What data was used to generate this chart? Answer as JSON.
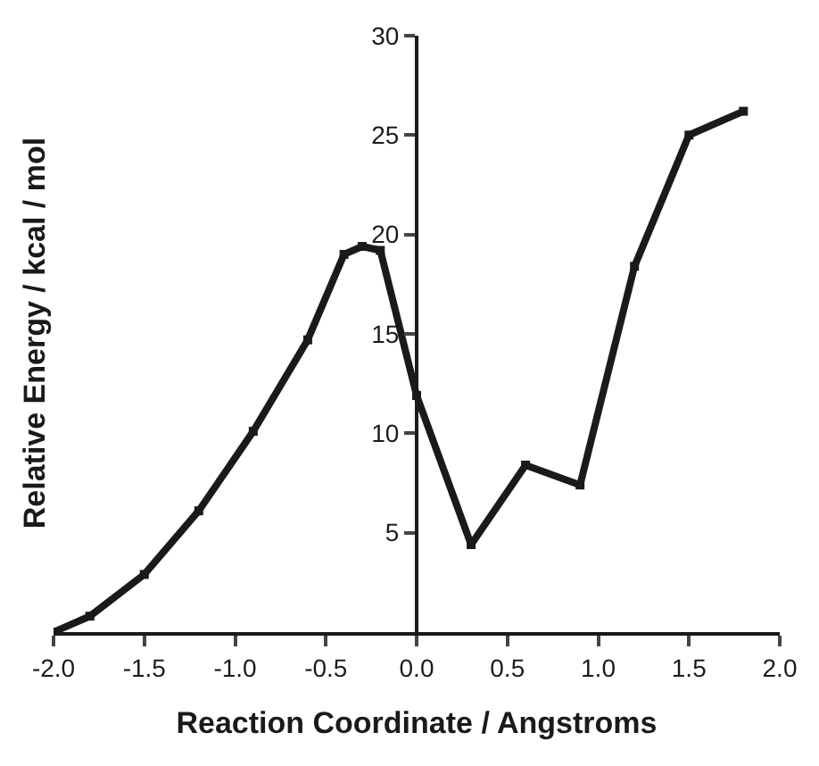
{
  "chart_data": {
    "type": "line",
    "xlabel": "Reaction Coordinate / Angstroms",
    "ylabel": "Relative Energy / kcal / mol",
    "x": [
      -2.0,
      -1.8,
      -1.5,
      -1.2,
      -0.9,
      -0.6,
      -0.4,
      -0.3,
      -0.2,
      0.0,
      0.3,
      0.6,
      0.9,
      1.2,
      1.5,
      1.8
    ],
    "series": [
      {
        "color": "#1a1a1a",
        "values": [
          0,
          0.8,
          2.9,
          6.1,
          10.1,
          14.7,
          19.0,
          19.4,
          19.2,
          11.9,
          4.4,
          8.4,
          7.4,
          18.4,
          25.0,
          26.2
        ]
      }
    ],
    "xlim": [
      -2.0,
      2.0
    ],
    "ylim": [
      0,
      30
    ],
    "xticks": [
      {
        "value": -2.0,
        "label": "-2.0"
      },
      {
        "value": -1.5,
        "label": "-1.5"
      },
      {
        "value": -1.0,
        "label": "-1.0"
      },
      {
        "value": -0.5,
        "label": "-0.5"
      },
      {
        "value": 0.0,
        "label": "0.0"
      },
      {
        "value": 0.5,
        "label": "0.5"
      },
      {
        "value": 1.0,
        "label": "1.0"
      },
      {
        "value": 1.5,
        "label": "1.5"
      },
      {
        "value": 2.0,
        "label": "2.0"
      }
    ],
    "yticks": [
      5,
      10,
      15,
      20,
      25,
      30
    ],
    "legend": false,
    "marker": "square",
    "line_style": "solid"
  }
}
